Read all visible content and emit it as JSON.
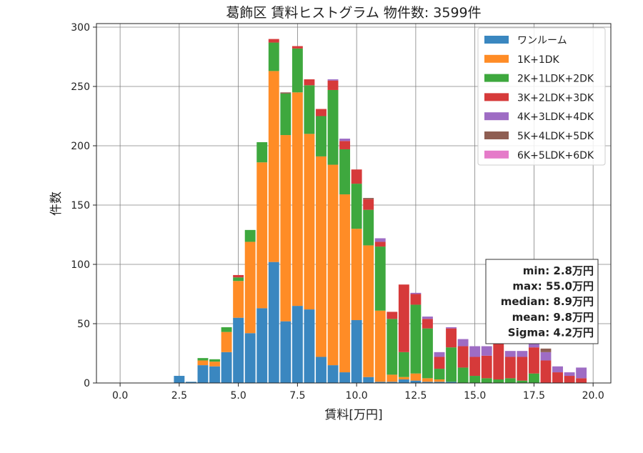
{
  "chart_data": {
    "type": "bar",
    "stacked": true,
    "title": "葛飾区 賃料ヒストグラム 物件数: 3599件",
    "xlabel": "賃料[万円]",
    "ylabel": "件数",
    "xlim": [
      -1.0,
      20.75
    ],
    "ylim": [
      0,
      303
    ],
    "xticks": [
      0.0,
      2.5,
      5.0,
      7.5,
      10.0,
      12.5,
      15.0,
      17.5,
      20.0
    ],
    "xtick_labels": [
      "0.0",
      "2.5",
      "5.0",
      "7.5",
      "10.0",
      "12.5",
      "15.0",
      "17.5",
      "20.0"
    ],
    "yticks": [
      0,
      50,
      100,
      150,
      200,
      250,
      300
    ],
    "ytick_labels": [
      "0",
      "50",
      "100",
      "150",
      "200",
      "250",
      "300"
    ],
    "grid": true,
    "legend_position": "top-right",
    "bin_width": 0.5,
    "x": [
      2.5,
      3.0,
      3.5,
      4.0,
      4.5,
      5.0,
      5.5,
      6.0,
      6.5,
      7.0,
      7.5,
      8.0,
      8.5,
      9.0,
      9.5,
      10.0,
      10.5,
      11.0,
      11.5,
      12.0,
      12.5,
      13.0,
      13.5,
      14.0,
      14.5,
      15.0,
      15.5,
      16.0,
      16.5,
      17.0,
      17.5,
      18.0,
      18.5,
      19.0,
      19.5
    ],
    "series": [
      {
        "name": "ワンルーム",
        "color": "#3a87c0",
        "values": [
          6,
          1,
          15,
          14,
          26,
          55,
          42,
          63,
          102,
          52,
          65,
          62,
          22,
          15,
          9,
          53,
          5,
          1,
          1,
          3,
          2,
          1,
          1,
          1,
          0,
          0,
          0,
          0,
          0,
          0,
          0,
          0,
          0,
          0,
          0
        ]
      },
      {
        "name": "1K+1DK",
        "color": "#ff8c26",
        "values": [
          0,
          0,
          4,
          4,
          17,
          31,
          77,
          123,
          161,
          157,
          180,
          148,
          169,
          169,
          150,
          77,
          111,
          60,
          6,
          2,
          6,
          3,
          2,
          0,
          0,
          0,
          0,
          0,
          0,
          0,
          0,
          0,
          0,
          0,
          0
        ]
      },
      {
        "name": "2K+1LDK+2DK",
        "color": "#3ea83e",
        "values": [
          0,
          0,
          2,
          2,
          4,
          3,
          10,
          17,
          24,
          35,
          37,
          41,
          34,
          63,
          38,
          38,
          30,
          54,
          47,
          21,
          58,
          42,
          9,
          29,
          13,
          6,
          4,
          3,
          4,
          2,
          8,
          0,
          0,
          0,
          0
        ]
      },
      {
        "name": "3K+2LDK+3DK",
        "color": "#d63a3a",
        "values": [
          0,
          0,
          0,
          0,
          0,
          2,
          0,
          0,
          3,
          0,
          2,
          5,
          6,
          8,
          7,
          12,
          9,
          4,
          6,
          57,
          9,
          8,
          10,
          16,
          18,
          16,
          19,
          32,
          18,
          20,
          22,
          19,
          9,
          6,
          4
        ]
      },
      {
        "name": "4K+3LDK+4DK",
        "color": "#9e6cc4",
        "values": [
          0,
          0,
          0,
          0,
          0,
          0,
          0,
          0,
          0,
          0,
          0,
          0,
          0,
          1,
          2,
          0,
          0,
          3,
          0,
          0,
          1,
          2,
          4,
          1,
          6,
          9,
          8,
          3,
          5,
          5,
          3,
          7,
          5,
          3,
          9
        ]
      },
      {
        "name": "5K+4LDK+5DK",
        "color": "#8f5e52",
        "values": [
          0,
          0,
          0,
          0,
          0,
          0,
          0,
          0,
          0,
          1,
          0,
          0,
          0,
          0,
          0,
          0,
          1,
          0,
          0,
          0,
          0,
          0,
          0,
          0,
          0,
          0,
          0,
          0,
          0,
          0,
          0,
          3,
          0,
          0,
          0
        ]
      },
      {
        "name": "6K+5LDK+6DK",
        "color": "#e57bc9",
        "values": [
          0,
          0,
          0,
          0,
          0,
          0,
          0,
          0,
          0,
          0,
          0,
          0,
          0,
          0,
          0,
          0,
          0,
          0,
          0,
          0,
          0,
          0,
          0,
          0,
          0,
          0,
          0,
          0,
          0,
          0,
          0,
          0,
          0,
          0,
          0
        ]
      }
    ],
    "annotation": [
      "min: 2.8万円",
      "max: 55.0万円",
      "median: 8.9万円",
      "mean: 9.8万円",
      "Sigma: 4.2万円"
    ]
  }
}
